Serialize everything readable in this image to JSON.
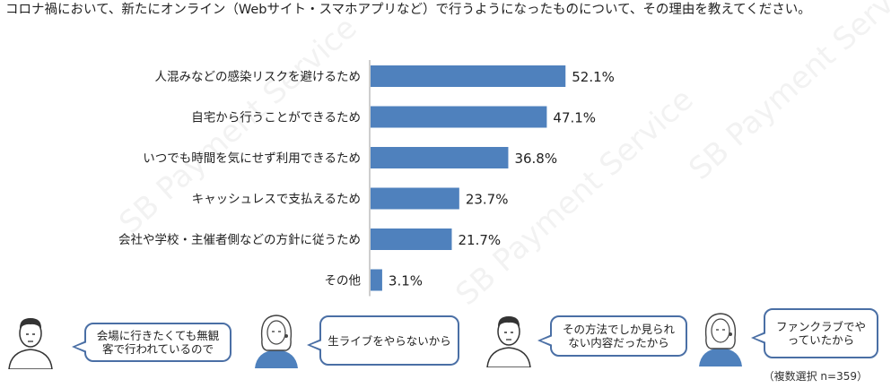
{
  "question": "コロナ禍において、新たにオンライン（Webサイト・スマホアプリなど）で行うようになったものについて、その理由を教えてください。",
  "chart_data": {
    "type": "bar",
    "orientation": "horizontal",
    "categories": [
      "人混みなどの感染リスクを避けるため",
      "自宅から行うことができるため",
      "いつでも時間を気にせず利用できるため",
      "キャッシュレスで支払えるため",
      "会社や学校・主催者側などの方針に従うため",
      "その他"
    ],
    "values": [
      52.1,
      47.1,
      36.8,
      23.7,
      21.7,
      3.1
    ],
    "value_labels": [
      "52.1%",
      "47.1%",
      "36.8%",
      "23.7%",
      "21.7%",
      "3.1%"
    ],
    "xlim": [
      0,
      100
    ],
    "bar_color": "#4f81bd",
    "grid": false,
    "legend": "none"
  },
  "speech_bubbles": [
    {
      "text": "会場に行きたくても無観客で行われているので",
      "figure": "man"
    },
    {
      "text": "生ライブをやらないから",
      "figure": "woman"
    },
    {
      "text": "その方法でしか見られない内容だったから",
      "figure": "man"
    },
    {
      "text": "ファンクラブでやっていたから",
      "figure": "woman"
    }
  ],
  "footnote": "（複数選択 n=359）",
  "watermark": "SB Payment Service",
  "colors": {
    "bar": "#4f81bd",
    "bubble_border": "#4a6fa5",
    "shirt": "#4f81bd"
  }
}
